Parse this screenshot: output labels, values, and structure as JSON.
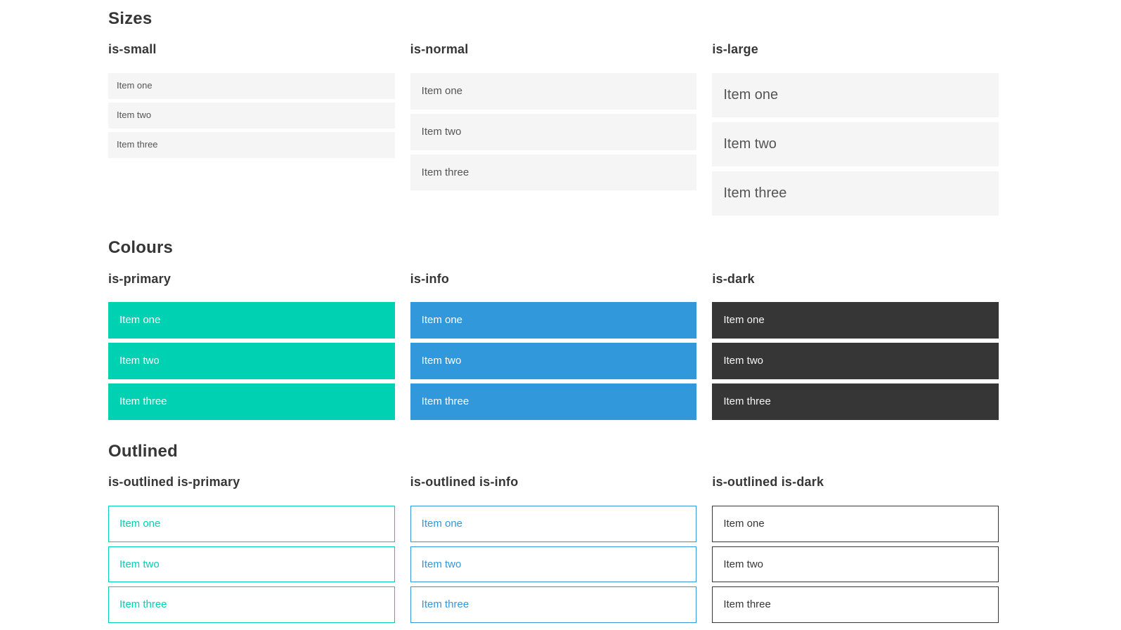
{
  "colors": {
    "primary": "#00d1b2",
    "info": "#3298dc",
    "dark": "#363636",
    "light_bg": "#f5f5f5"
  },
  "sections": [
    {
      "title": "Sizes",
      "columns": [
        {
          "heading": "is-small",
          "items": [
            "Item one",
            "Item two",
            "Item three"
          ]
        },
        {
          "heading": "is-normal",
          "items": [
            "Item one",
            "Item two",
            "Item three"
          ]
        },
        {
          "heading": "is-large",
          "items": [
            "Item one",
            "Item two",
            "Item three"
          ]
        }
      ]
    },
    {
      "title": "Colours",
      "columns": [
        {
          "heading": "is-primary",
          "items": [
            "Item one",
            "Item two",
            "Item three"
          ]
        },
        {
          "heading": "is-info",
          "items": [
            "Item one",
            "Item two",
            "Item three"
          ]
        },
        {
          "heading": "is-dark",
          "items": [
            "Item one",
            "Item two",
            "Item three"
          ]
        }
      ]
    },
    {
      "title": "Outlined",
      "columns": [
        {
          "heading": "is-outlined is-primary",
          "items": [
            "Item one",
            "Item two",
            "Item three"
          ]
        },
        {
          "heading": "is-outlined is-info",
          "items": [
            "Item one",
            "Item two",
            "Item three"
          ]
        },
        {
          "heading": "is-outlined is-dark",
          "items": [
            "Item one",
            "Item two",
            "Item three"
          ]
        }
      ]
    }
  ]
}
